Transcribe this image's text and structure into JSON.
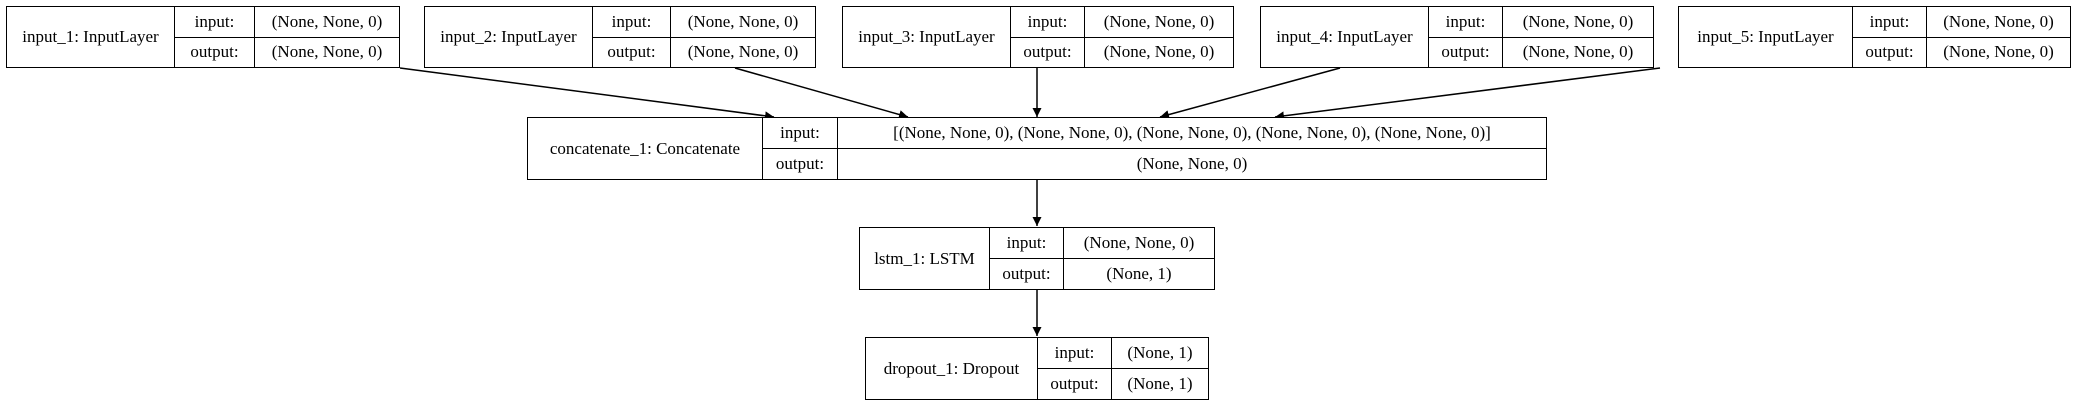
{
  "nodes": {
    "input_1": {
      "name": "input_1: InputLayer",
      "input_label": "input:",
      "input_value": "(None, None, 0)",
      "output_label": "output:",
      "output_value": "(None, None, 0)"
    },
    "input_2": {
      "name": "input_2: InputLayer",
      "input_label": "input:",
      "input_value": "(None, None, 0)",
      "output_label": "output:",
      "output_value": "(None, None, 0)"
    },
    "input_3": {
      "name": "input_3: InputLayer",
      "input_label": "input:",
      "input_value": "(None, None, 0)",
      "output_label": "output:",
      "output_value": "(None, None, 0)"
    },
    "input_4": {
      "name": "input_4: InputLayer",
      "input_label": "input:",
      "input_value": "(None, None, 0)",
      "output_label": "output:",
      "output_value": "(None, None, 0)"
    },
    "input_5": {
      "name": "input_5: InputLayer",
      "input_label": "input:",
      "input_value": "(None, None, 0)",
      "output_label": "output:",
      "output_value": "(None, None, 0)"
    },
    "concatenate_1": {
      "name": "concatenate_1: Concatenate",
      "input_label": "input:",
      "input_value": "[(None, None, 0), (None, None, 0), (None, None, 0), (None, None, 0), (None, None, 0)]",
      "output_label": "output:",
      "output_value": "(None, None, 0)"
    },
    "lstm_1": {
      "name": "lstm_1: LSTM",
      "input_label": "input:",
      "input_value": "(None, None, 0)",
      "output_label": "output:",
      "output_value": "(None, 1)"
    },
    "dropout_1": {
      "name": "dropout_1: Dropout",
      "input_label": "input:",
      "input_value": "(None, 1)",
      "output_label": "output:",
      "output_value": "(None, 1)"
    }
  },
  "edges": [
    {
      "from": "input_1",
      "to": "concatenate_1"
    },
    {
      "from": "input_2",
      "to": "concatenate_1"
    },
    {
      "from": "input_3",
      "to": "concatenate_1"
    },
    {
      "from": "input_4",
      "to": "concatenate_1"
    },
    {
      "from": "input_5",
      "to": "concatenate_1"
    },
    {
      "from": "concatenate_1",
      "to": "lstm_1"
    },
    {
      "from": "lstm_1",
      "to": "dropout_1"
    }
  ]
}
